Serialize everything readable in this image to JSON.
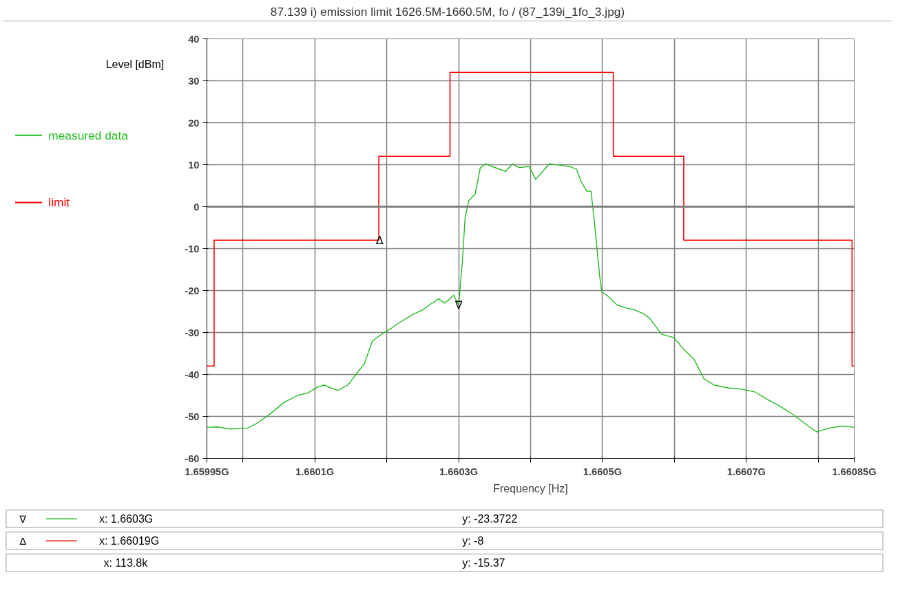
{
  "chart_data": {
    "type": "line",
    "title": "87.139 i) emission limit 1626.5M-1660.5M, fo / (87_139i_1fo_3.jpg)",
    "xlabel": "Frequency [Hz]",
    "ylabel": "Level [dBm]",
    "xlim": [
      1.65995,
      1.66085
    ],
    "ylim": [
      -60,
      40
    ],
    "xticks": [
      {
        "value": 1.65995,
        "label": "1.65995G"
      },
      {
        "value": 1.66,
        "label": null
      },
      {
        "value": 1.6601,
        "label": "1.6601G"
      },
      {
        "value": 1.6602,
        "label": null
      },
      {
        "value": 1.6603,
        "label": "1.6603G"
      },
      {
        "value": 1.6604,
        "label": null
      },
      {
        "value": 1.6605,
        "label": "1.6605G"
      },
      {
        "value": 1.6606,
        "label": null
      },
      {
        "value": 1.6607,
        "label": "1.6607G"
      },
      {
        "value": 1.6608,
        "label": null
      },
      {
        "value": 1.66085,
        "label": "1.66085G"
      }
    ],
    "yticks": [
      -60,
      -50,
      -40,
      -30,
      -20,
      -10,
      0,
      10,
      20,
      30,
      40
    ],
    "grid": true,
    "legend": "left",
    "line_style": "solid",
    "ref_lines": [
      {
        "axis": "y",
        "value": 0,
        "color": "#808080"
      }
    ],
    "series": [
      {
        "name": "measured data",
        "color": "#22bb22",
        "x": [
          1.65995,
          1.659964,
          1.659982,
          1.660006,
          1.66002,
          1.660038,
          1.660057,
          1.660076,
          1.66009,
          1.660104,
          1.660113,
          1.660122,
          1.660132,
          1.660146,
          1.660155,
          1.660169,
          1.66018,
          1.660193,
          1.660207,
          1.660221,
          1.660235,
          1.660249,
          1.660263,
          1.660272,
          1.660281,
          1.660293,
          1.6603,
          1.660305,
          1.660309,
          1.660314,
          1.660323,
          1.66033,
          1.660337,
          1.660351,
          1.660365,
          1.660375,
          1.660384,
          1.660398,
          1.660407,
          1.660417,
          1.660426,
          1.66044,
          1.660454,
          1.660464,
          1.66047,
          1.660478,
          1.660484,
          1.660489,
          1.660496,
          1.660499,
          1.660506,
          1.66052,
          1.660534,
          1.660543,
          1.660557,
          1.660566,
          1.660582,
          1.660599,
          1.660613,
          1.660627,
          1.660641,
          1.660655,
          1.660674,
          1.660693,
          1.660711,
          1.66073,
          1.660749,
          1.660767,
          1.660786,
          1.660798,
          1.660814,
          1.660833,
          1.66085
        ],
        "values": [
          -52.6,
          -52.5,
          -53,
          -52.8,
          -51.6,
          -49.4,
          -46.7,
          -45,
          -44.4,
          -43,
          -42.5,
          -43.2,
          -43.8,
          -42.5,
          -40.5,
          -37.4,
          -32,
          -30.4,
          -28.9,
          -27.3,
          -25.8,
          -24.7,
          -23,
          -22,
          -23,
          -21.1,
          -23.4,
          -13.4,
          -2.5,
          1.4,
          3,
          9.2,
          10.2,
          9.3,
          8.4,
          10.2,
          9.3,
          9.6,
          6.5,
          8.4,
          10.2,
          9.9,
          9.6,
          8.9,
          6.1,
          3.7,
          3.7,
          -4,
          -16.5,
          -20.3,
          -21.1,
          -23.4,
          -24.2,
          -24.5,
          -25.5,
          -26.7,
          -30.4,
          -31.2,
          -34,
          -36.3,
          -41,
          -42.5,
          -43.2,
          -43.5,
          -44.1,
          -46,
          -47.8,
          -49.8,
          -52.3,
          -53.7,
          -52.8,
          -52.3,
          -52.6
        ]
      },
      {
        "name": "limit",
        "color": "#ff0000",
        "type": "step",
        "x": [
          1.65995,
          1.65996,
          1.660189,
          1.660288,
          1.660515,
          1.660613,
          1.660847,
          1.66085
        ],
        "values": [
          -38,
          -8,
          12,
          32,
          12,
          -8,
          -38,
          -38
        ]
      }
    ],
    "annotations": [
      {
        "text": "∇",
        "x": 1.6603,
        "y": -23.3722
      },
      {
        "text": "Δ",
        "x": 1.66019,
        "y": -8
      },
      "x: 1.6603G",
      "y: -23.3722",
      "x: 1.66019G",
      "y: -8",
      "x: 113.8k",
      "y: -15.37"
    ]
  }
}
